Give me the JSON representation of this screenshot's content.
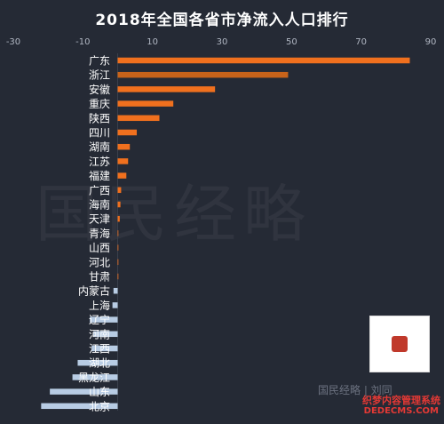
{
  "chart_data": {
    "type": "bar",
    "orientation": "horizontal",
    "title": "2018年全国各省市净流入人口排行",
    "xlim": [
      -30,
      90
    ],
    "xticks": [
      -30,
      -10,
      10,
      30,
      50,
      70,
      90
    ],
    "grid": false,
    "categories": [
      "广东",
      "浙江",
      "安徽",
      "重庆",
      "陕西",
      "四川",
      "湖南",
      "江苏",
      "福建",
      "广西",
      "海南",
      "天津",
      "青海",
      "山西",
      "河北",
      "甘肃",
      "内蒙古",
      "上海",
      "辽宁",
      "河南",
      "江西",
      "湖北",
      "黑龙江",
      "山东",
      "北京"
    ],
    "values": [
      84,
      49,
      28,
      16,
      12,
      5.5,
      3.5,
      3,
      2.5,
      1,
      0.8,
      0.6,
      0,
      0,
      0,
      0,
      -1.2,
      -1.5,
      -8,
      -7,
      -7.5,
      -11.5,
      -13,
      -19.5,
      -22
    ]
  },
  "colors": {
    "background": "#252a35",
    "positive": "#f0701e",
    "positive_alt": "#c8631a",
    "negative": "#b8cce4",
    "text": "#ffffff",
    "tick_text": "#b0b6c2"
  },
  "watermark": "国民经略",
  "brand_footer": "国民经略 | 刘同",
  "site_label": "织梦内容管理系统",
  "site_url": "DEDECMS.COM"
}
